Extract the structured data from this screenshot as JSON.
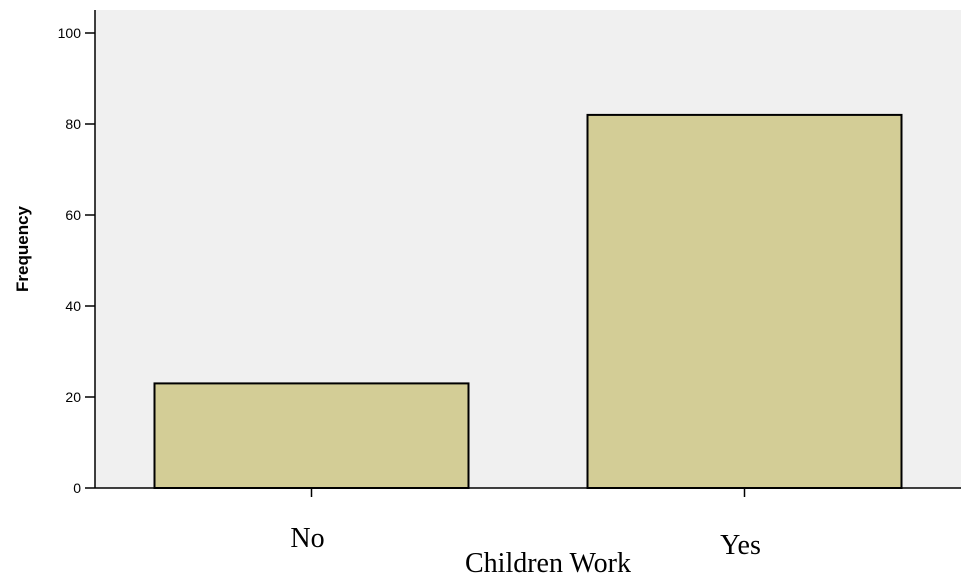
{
  "chart_data": {
    "type": "bar",
    "categories": [
      "No",
      "Yes"
    ],
    "values": [
      23,
      82
    ],
    "xlabel": "Children Work",
    "ylabel": "Frequency",
    "ylim": [
      0,
      100
    ],
    "yticks": [
      0,
      20,
      40,
      60,
      80,
      100
    ],
    "grid": false,
    "legend": "none",
    "colors": {
      "plot_background": "#f0f0f0",
      "bar_fill": "#d3cd96",
      "bar_stroke": "#000000",
      "axis": "#000000"
    }
  }
}
